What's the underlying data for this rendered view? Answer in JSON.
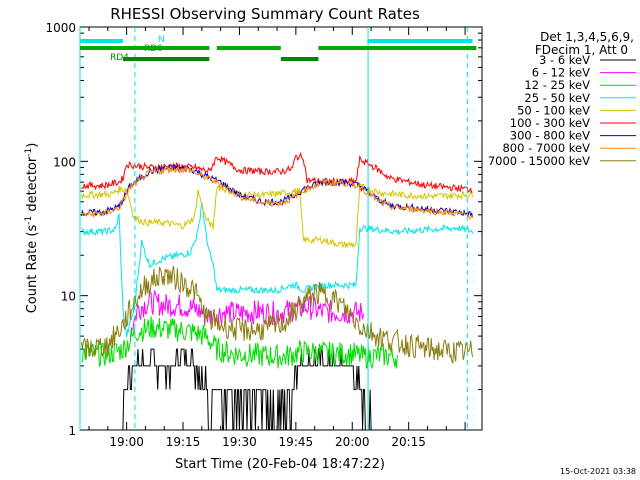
{
  "chart_data": {
    "type": "line",
    "title": "RHESSI Observing Summary Count Rates",
    "xlabel": "Start Time (20-Feb-04 18:47:22)",
    "ylabel_main": "Count Rate (s",
    "ylabel_sup1": "-1",
    "ylabel_mid": " detector",
    "ylabel_sup2": "-1",
    "ylabel_end": ")",
    "yscale": "log",
    "ylim": [
      1,
      1000
    ],
    "xlim_min": [
      -12.4,
      65.6
    ],
    "x_ticks": [
      {
        "label": "19:00",
        "x": 0
      },
      {
        "label": "19:15",
        "x": 15
      },
      {
        "label": "19:30",
        "x": 30
      },
      {
        "label": "19:45",
        "x": 45
      },
      {
        "label": "20:00",
        "x": 60
      },
      {
        "label": "20:15",
        "x": 75
      }
    ],
    "y_ticks": [
      {
        "label": "1",
        "y": 1
      },
      {
        "label": "10",
        "y": 10
      },
      {
        "label": "100",
        "y": 100
      },
      {
        "label": "1000",
        "y": 1000
      }
    ],
    "timestamp": "15-Oct-2021 03:38",
    "legend_header": [
      "Det 1,3,4,5,6,9,",
      "FDecim 1, Att 0"
    ],
    "series": [
      {
        "name": "3 - 6 keV",
        "color": "#000000",
        "points": [
          [
            -12,
            1
          ],
          [
            -1,
            1
          ],
          [
            -0.5,
            2
          ],
          [
            2,
            3.2
          ],
          [
            8,
            3
          ],
          [
            12,
            2.6
          ],
          [
            13,
            3.5
          ],
          [
            18,
            3.0
          ],
          [
            21,
            2.5
          ],
          [
            22,
            1.5
          ],
          [
            25,
            1.8
          ],
          [
            30,
            1.4
          ],
          [
            36,
            1.6
          ],
          [
            40,
            1.4
          ],
          [
            44,
            1.7
          ],
          [
            45,
            3
          ],
          [
            50,
            3.2
          ],
          [
            55,
            3
          ],
          [
            60,
            3
          ],
          [
            62,
            2
          ],
          [
            65,
            1.2
          ],
          [
            66,
            1
          ]
        ]
      },
      {
        "name": "6 - 12 keV",
        "color": "#ff00ff",
        "points": [
          [
            1,
            5.5
          ],
          [
            3,
            8
          ],
          [
            6,
            9
          ],
          [
            10,
            8.5
          ],
          [
            14,
            8.5
          ],
          [
            18,
            8
          ],
          [
            22,
            7
          ],
          [
            26,
            7.5
          ],
          [
            30,
            7.4
          ],
          [
            35,
            7.6
          ],
          [
            40,
            7.4
          ],
          [
            44,
            7.8
          ],
          [
            48,
            8.3
          ],
          [
            52,
            7.6
          ],
          [
            56,
            7.5
          ],
          [
            60,
            7.5
          ],
          [
            63,
            7.4
          ]
        ]
      },
      {
        "name": "12 - 25 keV",
        "color": "#00dd00",
        "points": [
          [
            -12,
            3.8
          ],
          [
            -6,
            3.6
          ],
          [
            -1,
            4
          ],
          [
            3,
            5.5
          ],
          [
            7,
            5.8
          ],
          [
            12,
            5.6
          ],
          [
            17,
            5.4
          ],
          [
            21,
            5
          ],
          [
            24,
            4
          ],
          [
            28,
            3.7
          ],
          [
            35,
            3.6
          ],
          [
            42,
            3.5
          ],
          [
            46,
            3.8
          ],
          [
            50,
            3.8
          ],
          [
            55,
            3.7
          ],
          [
            60,
            3.7
          ],
          [
            63,
            3.5
          ],
          [
            68,
            3.6
          ],
          [
            72,
            3.5
          ]
        ]
      },
      {
        "name": "25 - 50 keV",
        "color": "#00e5e5",
        "points": [
          [
            -12,
            30
          ],
          [
            -6,
            30
          ],
          [
            -3,
            31
          ],
          [
            -2,
            40
          ],
          [
            -1,
            8
          ],
          [
            0,
            5
          ],
          [
            2,
            8
          ],
          [
            4,
            25
          ],
          [
            6,
            17
          ],
          [
            10,
            19
          ],
          [
            14,
            20
          ],
          [
            17,
            21
          ],
          [
            19,
            30
          ],
          [
            20,
            50
          ],
          [
            21,
            30
          ],
          [
            22,
            21
          ],
          [
            23,
            17
          ],
          [
            24,
            11
          ],
          [
            30,
            11
          ],
          [
            35,
            11
          ],
          [
            40,
            11
          ],
          [
            44,
            12
          ],
          [
            45,
            12
          ],
          [
            47,
            11
          ],
          [
            52,
            12
          ],
          [
            57,
            12
          ],
          [
            61,
            12
          ],
          [
            62,
            32
          ],
          [
            67,
            31
          ],
          [
            72,
            30
          ],
          [
            80,
            31
          ],
          [
            88,
            32
          ],
          [
            92,
            30
          ]
        ]
      },
      {
        "name": "50 - 100 keV",
        "color": "#d4c400",
        "points": [
          [
            -12,
            56
          ],
          [
            -4,
            57
          ],
          [
            -2,
            62
          ],
          [
            0,
            62
          ],
          [
            2,
            38
          ],
          [
            5,
            35
          ],
          [
            10,
            35
          ],
          [
            15,
            33
          ],
          [
            18,
            38
          ],
          [
            19,
            60
          ],
          [
            21,
            38
          ],
          [
            23,
            32
          ],
          [
            24,
            65
          ],
          [
            30,
            57
          ],
          [
            36,
            56
          ],
          [
            42,
            58
          ],
          [
            45,
            60
          ],
          [
            46,
            60
          ],
          [
            47,
            26
          ],
          [
            52,
            26
          ],
          [
            57,
            24
          ],
          [
            61,
            24
          ],
          [
            62,
            65
          ],
          [
            68,
            58
          ],
          [
            74,
            56
          ],
          [
            80,
            55
          ],
          [
            88,
            56
          ],
          [
            92,
            57
          ]
        ]
      },
      {
        "name": "100 - 300 keV",
        "color": "#ff0000",
        "points": [
          [
            -12,
            66
          ],
          [
            -6,
            66
          ],
          [
            -2,
            70
          ],
          [
            -1,
            75
          ],
          [
            0,
            95
          ],
          [
            6,
            90
          ],
          [
            12,
            92
          ],
          [
            18,
            90
          ],
          [
            22,
            84
          ],
          [
            24,
            108
          ],
          [
            30,
            86
          ],
          [
            36,
            84
          ],
          [
            41,
            84
          ],
          [
            44,
            88
          ],
          [
            45,
            108
          ],
          [
            47,
            108
          ],
          [
            48,
            72
          ],
          [
            53,
            71
          ],
          [
            58,
            70
          ],
          [
            61,
            71
          ],
          [
            62,
            103
          ],
          [
            66,
            90
          ],
          [
            70,
            75
          ],
          [
            80,
            66
          ],
          [
            88,
            63
          ],
          [
            92,
            62
          ]
        ]
      },
      {
        "name": "300 - 800 keV",
        "color": "#0000cc",
        "points": [
          [
            -12,
            41
          ],
          [
            -6,
            42
          ],
          [
            -2,
            46
          ],
          [
            1,
            66
          ],
          [
            6,
            84
          ],
          [
            12,
            90
          ],
          [
            17,
            88
          ],
          [
            21,
            78
          ],
          [
            25,
            70
          ],
          [
            30,
            56
          ],
          [
            36,
            50
          ],
          [
            41,
            50
          ],
          [
            44,
            54
          ],
          [
            47,
            62
          ],
          [
            52,
            70
          ],
          [
            58,
            70
          ],
          [
            62,
            66
          ],
          [
            66,
            54
          ],
          [
            70,
            47
          ],
          [
            80,
            44
          ],
          [
            88,
            42
          ],
          [
            92,
            40
          ]
        ]
      },
      {
        "name": "800 - 7000 keV",
        "color": "#ff8800",
        "points": [
          [
            -12,
            40
          ],
          [
            -6,
            41
          ],
          [
            -2,
            45
          ],
          [
            1,
            64
          ],
          [
            6,
            82
          ],
          [
            12,
            88
          ],
          [
            17,
            86
          ],
          [
            21,
            76
          ],
          [
            25,
            68
          ],
          [
            30,
            55
          ],
          [
            36,
            49
          ],
          [
            41,
            49
          ],
          [
            44,
            53
          ],
          [
            47,
            61
          ],
          [
            52,
            69
          ],
          [
            58,
            69
          ],
          [
            62,
            65
          ],
          [
            66,
            53
          ],
          [
            70,
            46
          ],
          [
            80,
            43
          ],
          [
            88,
            41
          ],
          [
            92,
            39
          ]
        ]
      },
      {
        "name": "7000 - 15000 keV",
        "color": "#8b7d10",
        "points": [
          [
            -12,
            3.9
          ],
          [
            -5,
            4.3
          ],
          [
            -1,
            6
          ],
          [
            2,
            9
          ],
          [
            5,
            12
          ],
          [
            10,
            14.5
          ],
          [
            14,
            13
          ],
          [
            18,
            11
          ],
          [
            21,
            7
          ],
          [
            24,
            6.2
          ],
          [
            30,
            5.5
          ],
          [
            36,
            5.6
          ],
          [
            42,
            6.3
          ],
          [
            46,
            8.5
          ],
          [
            50,
            10.5
          ],
          [
            55,
            9.6
          ],
          [
            59,
            7.5
          ],
          [
            62,
            6
          ],
          [
            67,
            5
          ],
          [
            72,
            4.5
          ],
          [
            80,
            4
          ],
          [
            88,
            3.8
          ],
          [
            92,
            3.8
          ]
        ]
      }
    ],
    "state_bars": [
      {
        "label": "N",
        "color": "#00e5e5",
        "segments": [
          [
            -13,
            -1
          ],
          [
            64,
            92
          ]
        ],
        "level": "top"
      },
      {
        "label": "RD0",
        "color": "#00aa00",
        "segments": [
          [
            -13,
            22
          ],
          [
            24,
            41
          ],
          [
            51,
            93
          ]
        ],
        "level": "middle"
      },
      {
        "label": "RD4",
        "color": "#008800",
        "segments": [
          [
            -1,
            22
          ],
          [
            41,
            51
          ]
        ],
        "level": "lower"
      }
    ],
    "vertical_lines": [
      {
        "x": -12.4,
        "style": "solid",
        "color": "#00e5e5"
      },
      {
        "x": 2.2,
        "style": "dashed",
        "color": "#00e5e5"
      },
      {
        "x": 64.2,
        "style": "solid",
        "color": "#00e5e5"
      },
      {
        "x": 90.6,
        "style": "dashed",
        "color": "#00e5e5"
      }
    ]
  }
}
